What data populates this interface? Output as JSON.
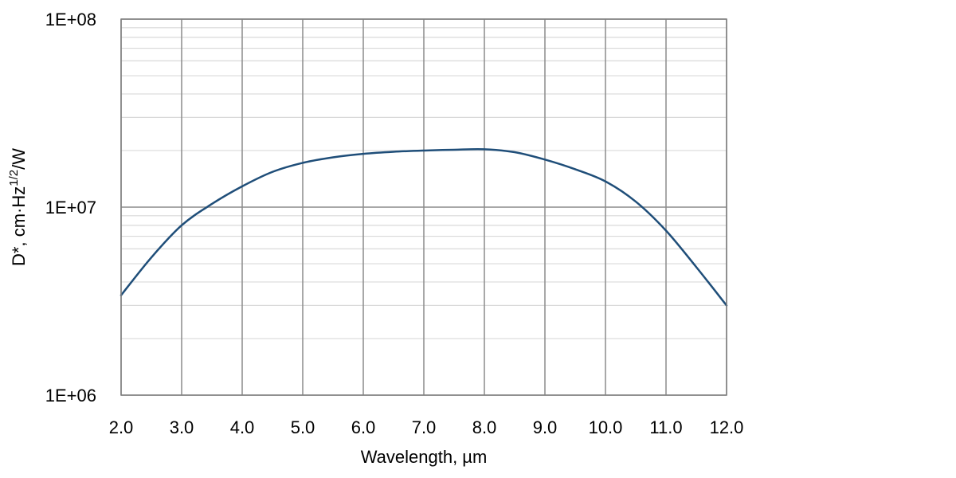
{
  "chart_data": {
    "type": "line",
    "title": "",
    "xlabel": "Wavelength, µm",
    "ylabel": {
      "main": "D*, cm·Hz",
      "superscript": "1/2",
      "suffix": "/W"
    },
    "xlim": [
      2.0,
      12.0
    ],
    "ylim": [
      1000000,
      100000000
    ],
    "yscale": "log",
    "grid": true,
    "x_ticks": [
      "2.0",
      "3.0",
      "4.0",
      "5.0",
      "6.0",
      "7.0",
      "8.0",
      "9.0",
      "10.0",
      "11.0",
      "12.0"
    ],
    "y_ticks": [
      {
        "value": 1000000,
        "label": "1E+06"
      },
      {
        "value": 10000000,
        "label": "1E+07"
      },
      {
        "value": 100000000,
        "label": "1E+08"
      }
    ],
    "series": [
      {
        "color": "#1f4e79",
        "x": [
          2.0,
          2.5,
          3.0,
          3.5,
          4.0,
          4.5,
          5.0,
          5.5,
          6.0,
          6.5,
          7.0,
          7.5,
          8.0,
          8.5,
          9.0,
          9.5,
          10.0,
          10.5,
          11.0,
          11.5,
          12.0
        ],
        "y": [
          3400000,
          5400000,
          8000000,
          10400000,
          12900000,
          15400000,
          17200000,
          18400000,
          19200000,
          19700000,
          20000000,
          20200000,
          20300000,
          19600000,
          17900000,
          15900000,
          13700000,
          10700000,
          7500000,
          4800000,
          3000000
        ]
      }
    ]
  }
}
